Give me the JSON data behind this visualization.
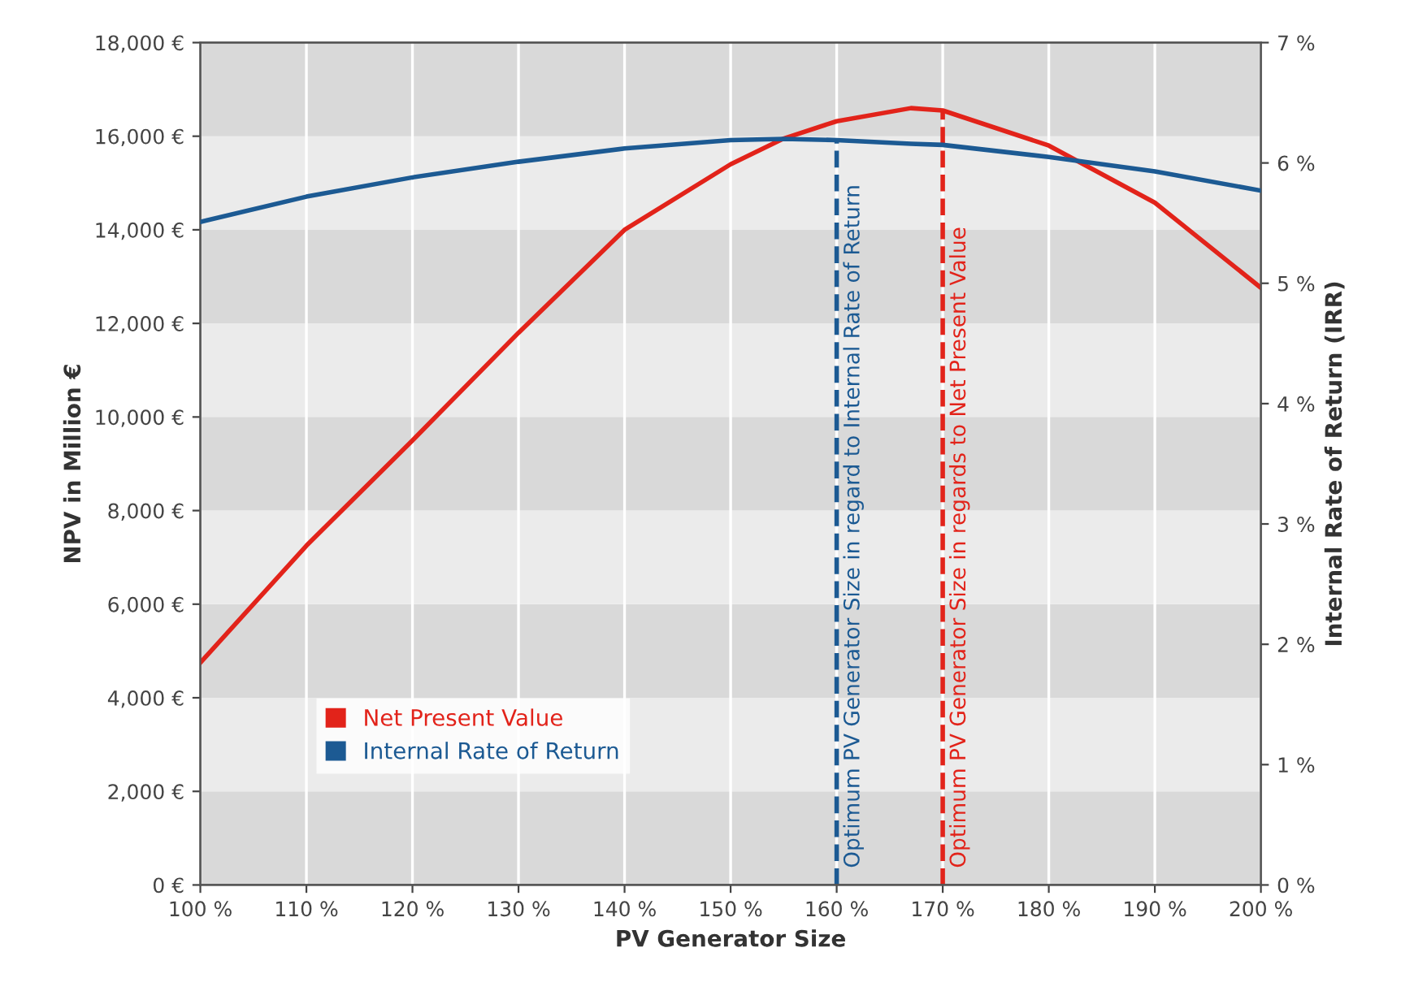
{
  "chart_data": {
    "type": "line",
    "xlabel": "PV Generator Size",
    "ylabel": "NPV in Million €",
    "y2label": "Internal Rate of Return (IRR)",
    "x": [
      100,
      110,
      120,
      130,
      140,
      150,
      155,
      160,
      167,
      170,
      180,
      190,
      200
    ],
    "series": [
      {
        "name": "Net Present Value",
        "color": "#e2231a",
        "values": [
          4750,
          7250,
          9500,
          11800,
          14000,
          15400,
          15950,
          16320,
          16600,
          16550,
          15800,
          14580,
          12760
        ]
      },
      {
        "name": "Internal Rate of Return",
        "color": "#1c5a93",
        "axis": "y2",
        "values": [
          5.51,
          5.72,
          5.88,
          6.01,
          6.12,
          6.19,
          6.2,
          6.19,
          6.16,
          6.15,
          6.05,
          5.93,
          5.77
        ]
      }
    ],
    "xlim": [
      100,
      200
    ],
    "xticks": [
      {
        "value": 100,
        "label": "100 %"
      },
      {
        "value": 110,
        "label": "110 %"
      },
      {
        "value": 120,
        "label": "120 %"
      },
      {
        "value": 130,
        "label": "130 %"
      },
      {
        "value": 140,
        "label": "140 %"
      },
      {
        "value": 150,
        "label": "150 %"
      },
      {
        "value": 160,
        "label": "160 %"
      },
      {
        "value": 170,
        "label": "170 %"
      },
      {
        "value": 180,
        "label": "180 %"
      },
      {
        "value": 190,
        "label": "190 %"
      },
      {
        "value": 200,
        "label": "200 %"
      }
    ],
    "ylim": [
      0,
      18000
    ],
    "yticks": [
      {
        "value": 0,
        "label": "0 €"
      },
      {
        "value": 2000,
        "label": "2,000 €"
      },
      {
        "value": 4000,
        "label": "4,000 €"
      },
      {
        "value": 6000,
        "label": "6,000 €"
      },
      {
        "value": 8000,
        "label": "8,000 €"
      },
      {
        "value": 10000,
        "label": "10,000 €"
      },
      {
        "value": 12000,
        "label": "12,000 €"
      },
      {
        "value": 14000,
        "label": "14,000 €"
      },
      {
        "value": 16000,
        "label": "16,000 €"
      },
      {
        "value": 18000,
        "label": "18,000 €"
      }
    ],
    "y2lim": [
      0,
      7
    ],
    "y2ticks": [
      {
        "value": 0,
        "label": "0 %"
      },
      {
        "value": 1,
        "label": "1 %"
      },
      {
        "value": 2,
        "label": "2 %"
      },
      {
        "value": 3,
        "label": "3 %"
      },
      {
        "value": 4,
        "label": "4 %"
      },
      {
        "value": 5,
        "label": "5 %"
      },
      {
        "value": 6,
        "label": "6 %"
      },
      {
        "value": 7,
        "label": "7 %"
      }
    ],
    "ref_lines": [
      {
        "axis": "x",
        "value": 160,
        "label": "Optimum PV Generator Size in regard to Internal Rate of Return",
        "color": "#1c5a93",
        "line_style": "dashed"
      },
      {
        "axis": "x",
        "value": 170,
        "label": "Optimum PV Generator Size in regards to Net Present Value",
        "color": "#e2231a",
        "line_style": "dashed"
      }
    ],
    "bands": [
      {
        "axis": "y",
        "from": 0,
        "to": 2000,
        "color": "#d9d9d9"
      },
      {
        "axis": "y",
        "from": 2000,
        "to": 4000,
        "color": "#ebebeb"
      },
      {
        "axis": "y",
        "from": 4000,
        "to": 6000,
        "color": "#d9d9d9"
      },
      {
        "axis": "y",
        "from": 6000,
        "to": 8000,
        "color": "#ebebeb"
      },
      {
        "axis": "y",
        "from": 8000,
        "to": 10000,
        "color": "#d9d9d9"
      },
      {
        "axis": "y",
        "from": 10000,
        "to": 12000,
        "color": "#ebebeb"
      },
      {
        "axis": "y",
        "from": 12000,
        "to": 14000,
        "color": "#d9d9d9"
      },
      {
        "axis": "y",
        "from": 14000,
        "to": 16000,
        "color": "#ebebeb"
      },
      {
        "axis": "y",
        "from": 16000,
        "to": 18000,
        "color": "#d9d9d9"
      }
    ],
    "grid": "x",
    "legend": "bottom left",
    "marker": "none",
    "line_style": "solid"
  }
}
